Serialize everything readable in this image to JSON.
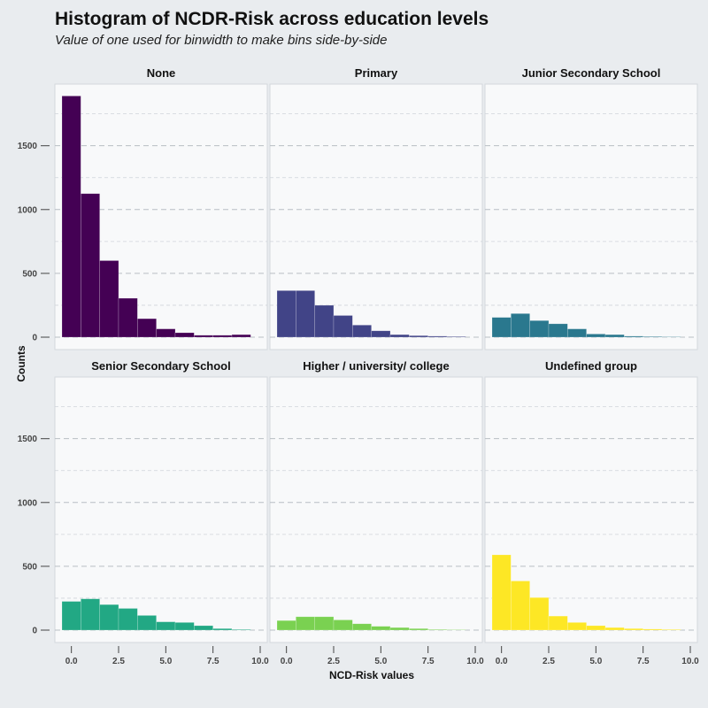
{
  "title": "Histogram of NCDR-Risk across education levels",
  "subtitle": "Value of one used for binwidth to make bins side-by-side",
  "chart_data": {
    "type": "bar",
    "xlabel": "NCD-Risk values",
    "ylabel": "Counts",
    "xlim": [
      -0.5,
      10
    ],
    "ylim": [
      0,
      1900
    ],
    "x_ticks": [
      "0.0",
      "2.5",
      "5.0",
      "7.5",
      "10.0"
    ],
    "y_ticks": [
      "0",
      "500",
      "1000",
      "1500"
    ],
    "bin_centers": [
      0,
      1,
      2,
      3,
      4,
      5,
      6,
      7,
      8,
      9
    ],
    "binwidth": 1,
    "grid": true,
    "panels": [
      {
        "name": "None",
        "color": "#440154",
        "values": [
          1890,
          1125,
          600,
          305,
          145,
          65,
          35,
          15,
          15,
          20
        ]
      },
      {
        "name": "Primary",
        "color": "#414487",
        "values": [
          365,
          365,
          250,
          170,
          95,
          50,
          20,
          12,
          8,
          5
        ]
      },
      {
        "name": "Junior Secondary School",
        "color": "#2a788e",
        "values": [
          155,
          185,
          130,
          105,
          65,
          25,
          20,
          8,
          5,
          3
        ]
      },
      {
        "name": "Senior Secondary School",
        "color": "#22a884",
        "values": [
          225,
          245,
          200,
          170,
          115,
          65,
          60,
          35,
          12,
          5
        ]
      },
      {
        "name": "Higher / university/ college",
        "color": "#7ad151",
        "values": [
          75,
          105,
          105,
          80,
          50,
          30,
          20,
          12,
          5,
          3
        ]
      },
      {
        "name": "Undefined group",
        "color": "#fde725",
        "values": [
          590,
          385,
          255,
          110,
          60,
          35,
          20,
          12,
          8,
          5
        ]
      }
    ]
  }
}
